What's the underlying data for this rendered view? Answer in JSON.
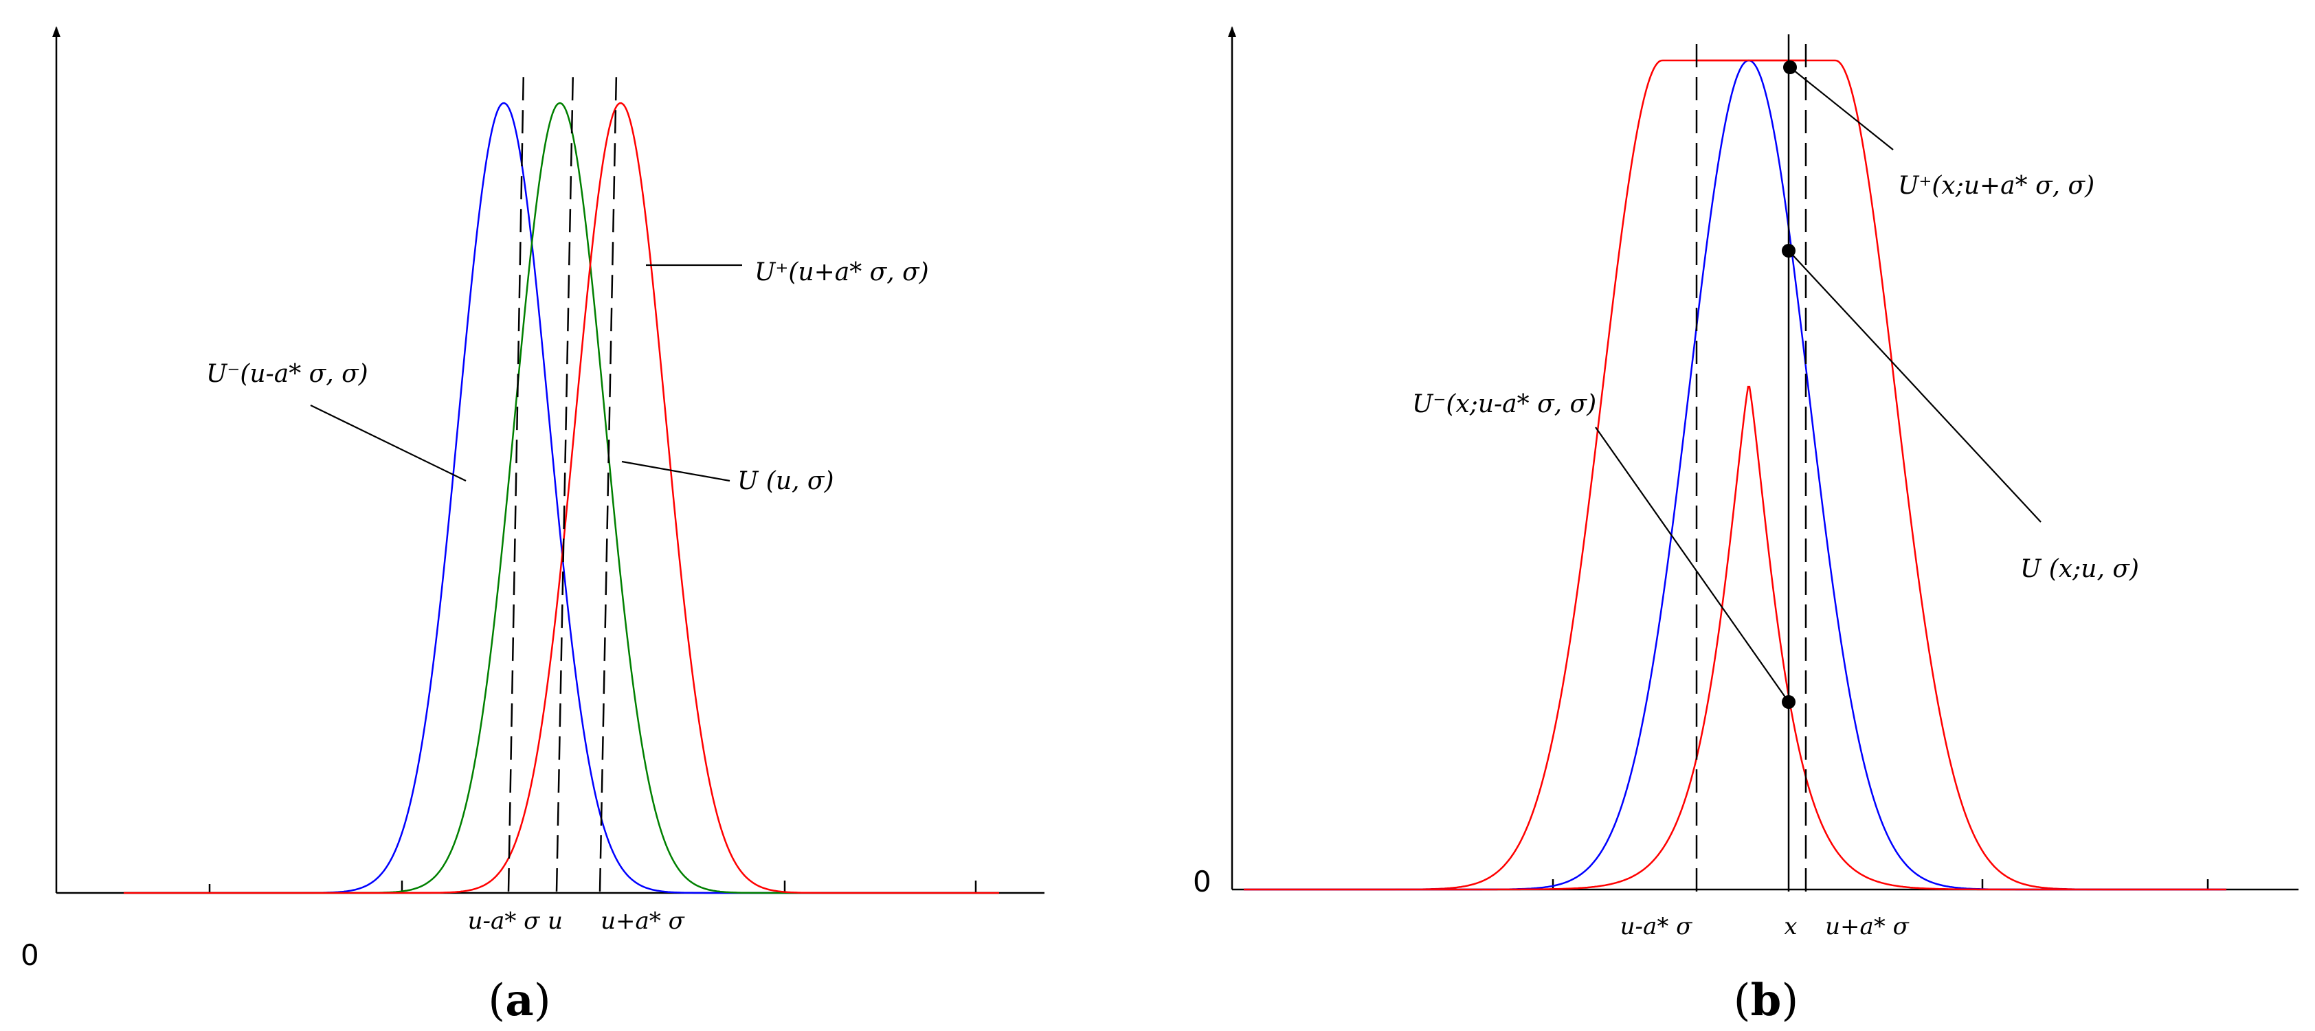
{
  "chart_data": [
    {
      "panel": "(a)",
      "panel_letter": "a",
      "type": "line",
      "title": "",
      "xlabel": "",
      "ylabel": "",
      "origin_label": "0",
      "xlim": [
        -6.5,
        6.5
      ],
      "ylim": [
        0,
        1
      ],
      "grid": false,
      "legend": "none",
      "tick_labels": [
        {
          "x": -0.6,
          "text": "u-a* σ"
        },
        {
          "x": 0,
          "text": "u"
        },
        {
          "x": 0.55,
          "text": "u+a* σ"
        }
      ],
      "series": [
        {
          "name": "U⁻(u-a* σ, σ)",
          "color": "#0000ff",
          "shape": "gaussian",
          "center": -0.55,
          "sigma": 0.48,
          "peak": 1.0
        },
        {
          "name": "U (u, σ)",
          "color": "#008000",
          "shape": "gaussian",
          "center": 0.05,
          "sigma": 0.48,
          "peak": 1.0
        },
        {
          "name": "U⁺(u+a* σ, σ)",
          "color": "#ff0000",
          "shape": "gaussian",
          "center": 0.7,
          "sigma": 0.48,
          "peak": 1.0
        }
      ],
      "annotations": [
        {
          "text": "U⁻(u-a* σ, σ)",
          "series": 0
        },
        {
          "text": "U (u, σ)",
          "series": 1
        },
        {
          "text": "U⁺(u+a* σ, σ)",
          "series": 2
        }
      ]
    },
    {
      "panel": "(b)",
      "panel_letter": "b",
      "type": "line",
      "title": "",
      "xlabel": "",
      "ylabel": "",
      "origin_label": "0",
      "xlim": [
        -6,
        6
      ],
      "ylim": [
        0,
        1
      ],
      "grid": false,
      "legend": "none",
      "tick_labels": [
        {
          "x": -0.6,
          "text": "u-a* σ"
        },
        {
          "x": 0.25,
          "text": "x"
        },
        {
          "x": 0.6,
          "text": "u+a* σ"
        }
      ],
      "series": [
        {
          "name": "U⁺(x;u+a* σ, σ)",
          "color": "#ff0000",
          "shape": "flat-top",
          "left": -0.7,
          "right": 0.7,
          "sigma": 0.48,
          "peak": 1.0
        },
        {
          "name": "U (x;u, σ)",
          "color": "#0000ff",
          "shape": "gaussian",
          "center": 0.0,
          "sigma": 0.48,
          "peak": 1.0
        },
        {
          "name": "U⁻(x;u-a* σ, σ)",
          "color": "#ff0000",
          "shape": "triangle",
          "center": 0.0,
          "width": 0.7,
          "peak": 0.61
        }
      ],
      "annotations": [
        {
          "text": "U⁺(x;u+a* σ, σ)",
          "series": 0
        },
        {
          "text": "U (x;u, σ)",
          "series": 1
        },
        {
          "text": "U⁻(x;u-a* σ, σ)",
          "series": 2
        }
      ]
    }
  ]
}
